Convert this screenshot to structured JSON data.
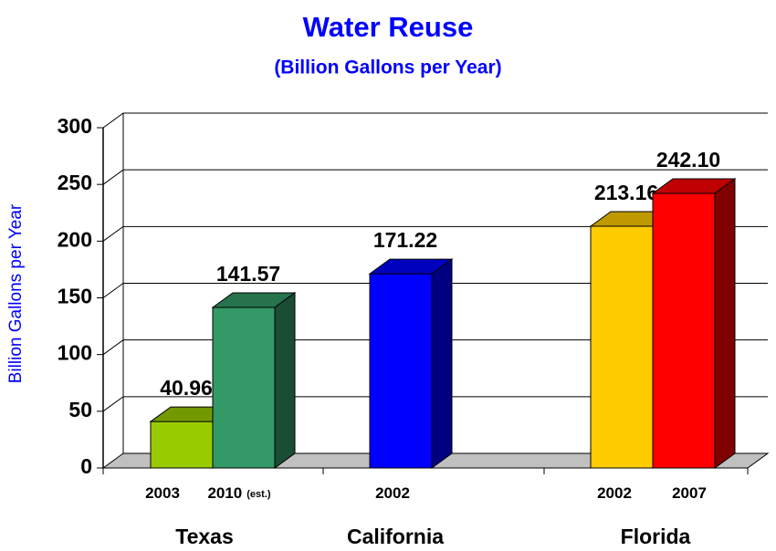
{
  "chart_data": {
    "type": "bar3d",
    "title": "Water Reuse",
    "subtitle": "(Billion Gallons per Year)",
    "y_label": "Billion Gallons per Year",
    "ylim": [
      0,
      300
    ],
    "yticks": [
      0,
      50,
      100,
      150,
      200,
      250,
      300
    ],
    "grid": true,
    "groups": [
      {
        "name": "Texas",
        "bars": [
          {
            "label": "2003",
            "value": 40.96,
            "value_label": "40.96",
            "color": "#99cc00"
          },
          {
            "label": "2010",
            "note": "(est.)",
            "value": 141.57,
            "value_label": "141.57",
            "color": "#339966"
          }
        ]
      },
      {
        "name": "California",
        "bars": [
          {
            "label": "2002",
            "value": 171.22,
            "value_label": "171.22",
            "color": "#0000ff"
          }
        ]
      },
      {
        "name": "Florida",
        "bars": [
          {
            "label": "2002",
            "value": 213.16,
            "value_label": "213.16",
            "color": "#ffcc00"
          },
          {
            "label": "2007",
            "value": 242.1,
            "value_label": "242.10",
            "color": "#ff0000"
          }
        ]
      }
    ]
  }
}
